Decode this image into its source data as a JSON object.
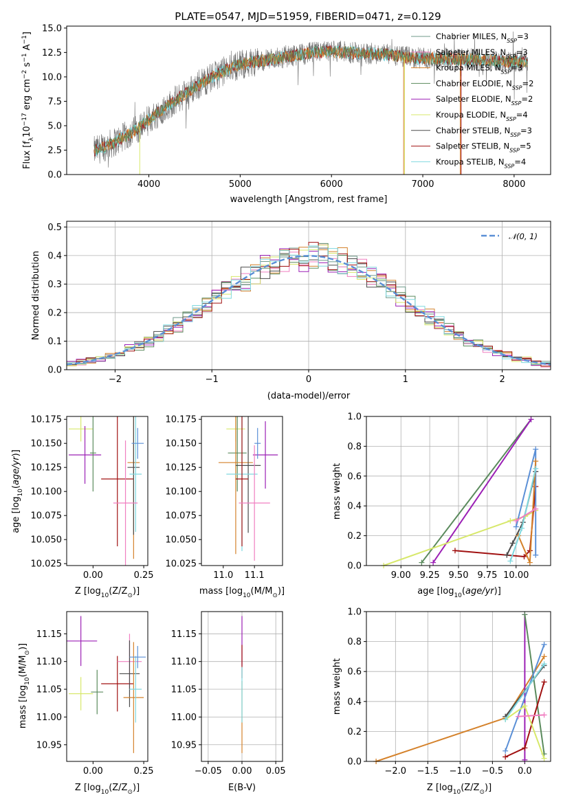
{
  "figure_title": "PLATE=0547, MJD=51959, FIBERID=0471, z=0.129",
  "colors": {
    "Chabrier MILES": "#6f9a8a",
    "Salpeter MILES": "#f07ec0",
    "Kroupa MILES": "#d4812a",
    "Chabrier ELODIE": "#5a8a5c",
    "Salpeter ELODIE": "#9b1fb5",
    "Kroupa ELODIE": "#d7e86a",
    "Chabrier STELIB": "#4a4a4a",
    "Salpeter STELIB": "#a01010",
    "Kroupa STELIB": "#7fd8df",
    "gauss": "#5a8fd6",
    "blue_series": "#5a8fd6",
    "orange_series": "#e07b20",
    "green_series": "#5a8a5c",
    "purple_series": "#9b1fb5",
    "yellow_series": "#cfe85a",
    "red_series": "#a01010",
    "dark_series": "#4a4a4a",
    "pink_series": "#f07ec0",
    "cyan_series": "#7fd8df"
  },
  "chart_data": [
    {
      "id": "spectrum",
      "type": "line",
      "title": "PLATE=0547, MJD=51959, FIBERID=0471, z=0.129",
      "xlabel": "wavelength [Angstrom, rest frame]",
      "ylabel": "Flux [fλ10⁻¹⁷ erg cm⁻² s⁻¹ A⁻¹]",
      "xlim": [
        3100,
        8400
      ],
      "ylim": [
        0,
        15.2
      ],
      "xticks": [
        "4000",
        "5000",
        "6000",
        "7000",
        "8000"
      ],
      "yticks": [
        "0.0",
        "2.5",
        "5.0",
        "7.5",
        "10.0",
        "12.5",
        "15.0"
      ],
      "legend_position": "right",
      "continuum_knots": [
        [
          3400,
          2.4
        ],
        [
          3600,
          3.2
        ],
        [
          3800,
          4.2
        ],
        [
          4000,
          5.6
        ],
        [
          4200,
          7.0
        ],
        [
          4400,
          8.3
        ],
        [
          4600,
          9.5
        ],
        [
          4800,
          10.5
        ],
        [
          5000,
          11.3
        ],
        [
          5200,
          11.6
        ],
        [
          5400,
          11.9
        ],
        [
          5600,
          12.2
        ],
        [
          5800,
          12.5
        ],
        [
          6000,
          12.6
        ],
        [
          6200,
          12.5
        ],
        [
          6400,
          12.4
        ],
        [
          6600,
          12.3
        ],
        [
          6800,
          12.0
        ],
        [
          7000,
          11.9
        ],
        [
          7200,
          11.9
        ],
        [
          7400,
          11.8
        ],
        [
          7600,
          11.8
        ],
        [
          7800,
          11.6
        ],
        [
          8000,
          11.6
        ],
        [
          8150,
          11.5
        ]
      ],
      "series": [
        {
          "name": "Chabrier MILES, N_SSP=3"
        },
        {
          "name": "Salpeter MILES, N_SSP=3"
        },
        {
          "name": "Kroupa MILES, N_SSP=3"
        },
        {
          "name": "Chabrier ELODIE, N_SSP=2"
        },
        {
          "name": "Salpeter ELODIE, N_SSP=2"
        },
        {
          "name": "Kroupa ELODIE, N_SSP=4"
        },
        {
          "name": "Chabrier STELIB, N_SSP=3"
        },
        {
          "name": "Salpeter STELIB, N_SSP=5"
        },
        {
          "name": "Kroupa STELIB, N_SSP=4"
        }
      ],
      "legend_labels": [
        {
          "pre": "Chabrier MILES, N",
          "sub": "SSP",
          "post": "=3"
        },
        {
          "pre": "Salpeter MILES, N",
          "sub": "SSP",
          "post": "=3"
        },
        {
          "pre": "Kroupa MILES, N",
          "sub": "SSP",
          "post": "=3"
        },
        {
          "pre": "Chabrier ELODIE, N",
          "sub": "SSP",
          "post": "=2"
        },
        {
          "pre": "Salpeter ELODIE, N",
          "sub": "SSP",
          "post": "=2"
        },
        {
          "pre": "Kroupa ELODIE, N",
          "sub": "SSP",
          "post": "=4"
        },
        {
          "pre": "Chabrier STELIB, N",
          "sub": "SSP",
          "post": "=3"
        },
        {
          "pre": "Salpeter STELIB, N",
          "sub": "SSP",
          "post": "=5"
        },
        {
          "pre": "Kroupa STELIB, N",
          "sub": "SSP",
          "post": "=4"
        }
      ],
      "vertical_drops": [
        {
          "x": 6790,
          "series": "Kroupa MILES"
        },
        {
          "x": 7410,
          "series": "Kroupa MILES"
        },
        {
          "x": 6800,
          "series": "Kroupa ELODIE"
        },
        {
          "x": 7420,
          "series": "Salpeter STELIB"
        },
        {
          "x": 3900,
          "series": "Kroupa ELODIE"
        }
      ]
    },
    {
      "id": "residuals",
      "type": "line",
      "xlabel": "(data-model)/error",
      "ylabel": "Normed distribution",
      "xlim": [
        -2.5,
        2.5
      ],
      "ylim": [
        0,
        0.52
      ],
      "xticks": [
        -2,
        -1,
        0,
        1,
        2
      ],
      "yticks": [
        "0.0",
        "0.1",
        "0.2",
        "0.3",
        "0.4",
        "0.5"
      ],
      "gauss_label": "𝒩(0, 1)",
      "bin_width": 0.1,
      "grid": true
    },
    {
      "id": "age_vs_Z",
      "type": "scatter",
      "xlabel_parts": {
        "pre": "Z [log",
        "sub": "10",
        "post": "(Z/Z",
        "sub2": "⊙",
        "end": ")]"
      },
      "ylabel": "age  [log10(age/yr)]",
      "xlim": [
        -0.13,
        0.27
      ],
      "ylim": [
        10.023,
        10.178
      ],
      "xticks": [
        "0.00",
        "0.25"
      ],
      "yticks": [
        "10.025",
        "10.050",
        "10.075",
        "10.100",
        "10.125",
        "10.150",
        "10.175"
      ],
      "points": [
        {
          "series": "Kroupa ELODIE",
          "x": -0.06,
          "xerr": 0.06,
          "y": 10.165,
          "yerr": 0.013
        },
        {
          "series": "Salpeter ELODIE",
          "x": -0.04,
          "xerr": 0.08,
          "y": 10.138,
          "yerr": 0.03
        },
        {
          "series": "Chabrier ELODIE",
          "x": 0.0,
          "xerr": 0.015,
          "y": 10.14,
          "yerr": 0.04
        },
        {
          "series": "Salpeter STELIB",
          "x": 0.12,
          "xerr": 0.08,
          "y": 10.113,
          "yerr": 0.07
        },
        {
          "series": "Kroupa MILES",
          "x": 0.2,
          "xerr": 0.03,
          "y": 10.13,
          "yerr": 0.1
        },
        {
          "series": "Chabrier STELIB",
          "x": 0.2,
          "xerr": 0.03,
          "y": 10.125,
          "yerr": 0.07
        },
        {
          "series": "Kroupa STELIB",
          "x": 0.21,
          "xerr": 0.03,
          "y": 10.118,
          "yerr": 0.06
        },
        {
          "series": "Salpeter MILES",
          "x": 0.16,
          "xerr": 0.06,
          "y": 10.088,
          "yerr": 0.065
        },
        {
          "series": "Blue",
          "x": 0.22,
          "xerr": 0.03,
          "y": 10.15,
          "yerr": 0.016
        }
      ]
    },
    {
      "id": "age_vs_mass",
      "type": "scatter",
      "xlabel_parts": {
        "pre": "mass [log",
        "sub": "10",
        "post": "(M/M",
        "sub2": "⊙",
        "end": ")]"
      },
      "xlim": [
        10.93,
        11.19
      ],
      "ylim": [
        10.023,
        10.178
      ],
      "xticks": [
        "11.0",
        "11.1"
      ],
      "yticks": [
        "10.025",
        "10.050",
        "10.075",
        "10.100",
        "10.125",
        "10.150",
        "10.175"
      ],
      "points": [
        {
          "series": "Kroupa ELODIE",
          "x": 11.04,
          "xerr": 0.03,
          "y": 10.165,
          "yerr": 0.013
        },
        {
          "series": "Salpeter ELODIE",
          "x": 11.135,
          "xerr": 0.04,
          "y": 10.138,
          "yerr": 0.035
        },
        {
          "series": "Chabrier ELODIE",
          "x": 11.045,
          "xerr": 0.03,
          "y": 10.14,
          "yerr": 0.04
        },
        {
          "series": "Blue",
          "x": 11.11,
          "xerr": 0.01,
          "y": 10.15,
          "yerr": 0.016
        },
        {
          "series": "Kroupa MILES",
          "x": 11.04,
          "xerr": 0.055,
          "y": 10.13,
          "yerr": 0.095
        },
        {
          "series": "Chabrier STELIB",
          "x": 11.08,
          "xerr": 0.04,
          "y": 10.127,
          "yerr": 0.07
        },
        {
          "series": "Kroupa STELIB",
          "x": 11.06,
          "xerr": 0.05,
          "y": 10.118,
          "yerr": 0.08
        },
        {
          "series": "Salpeter STELIB",
          "x": 11.06,
          "xerr": 0.02,
          "y": 10.113,
          "yerr": 0.07
        },
        {
          "series": "Salpeter MILES",
          "x": 11.1,
          "xerr": 0.05,
          "y": 10.088,
          "yerr": 0.06
        }
      ]
    },
    {
      "id": "weight_vs_age",
      "type": "line",
      "xlabel_parts": {
        "pre": "age  [log",
        "sub": "10",
        "post": "(age/yr)]"
      },
      "ylabel": "mass weight",
      "xlim": [
        8.7,
        10.3
      ],
      "ylim": [
        0,
        1.0
      ],
      "xticks": [
        "9.00",
        "9.25",
        "9.50",
        "9.75",
        "10.00"
      ],
      "yticks": [
        "0.0",
        "0.2",
        "0.4",
        "0.6",
        "0.8",
        "1.0"
      ],
      "grid": true,
      "series": [
        {
          "series": "Chabrier ELODIE",
          "points": [
            [
              9.18,
              0.02
            ],
            [
              10.13,
              0.98
            ]
          ]
        },
        {
          "series": "Salpeter ELODIE",
          "points": [
            [
              9.28,
              0.02
            ],
            [
              10.13,
              0.98
            ]
          ]
        },
        {
          "series": "Kroupa ELODIE",
          "points": [
            [
              8.85,
              0.0
            ],
            [
              9.95,
              0.3
            ],
            [
              10.08,
              0.33
            ],
            [
              10.17,
              0.37
            ]
          ]
        },
        {
          "series": "Salpeter STELIB",
          "points": [
            [
              9.47,
              0.1
            ],
            [
              10.07,
              0.06
            ],
            [
              10.12,
              0.1
            ],
            [
              10.17,
              0.53
            ]
          ]
        },
        {
          "series": "Chabrier STELIB",
          "points": [
            [
              9.92,
              0.07
            ],
            [
              9.97,
              0.15
            ],
            [
              10.06,
              0.29
            ],
            [
              10.17,
              0.63
            ]
          ]
        },
        {
          "series": "Blue",
          "points": [
            [
              10.0,
              0.26
            ],
            [
              10.17,
              0.78
            ],
            [
              10.17,
              0.07
            ]
          ]
        },
        {
          "series": "Kroupa MILES",
          "points": [
            [
              10.02,
              0.2
            ],
            [
              10.12,
              0.02
            ],
            [
              10.17,
              0.7
            ]
          ]
        },
        {
          "series": "Kroupa STELIB",
          "points": [
            [
              9.95,
              0.03
            ],
            [
              10.05,
              0.25
            ],
            [
              10.17,
              0.65
            ]
          ]
        },
        {
          "series": "Salpeter MILES",
          "points": [
            [
              10.0,
              0.3
            ],
            [
              10.17,
              0.38
            ]
          ]
        }
      ]
    },
    {
      "id": "mass_vs_Z",
      "type": "scatter",
      "xlabel_parts": {
        "pre": "Z [log",
        "sub": "10",
        "post": "(Z/Z",
        "sub2": "⊙",
        "end": ")]"
      },
      "ylabel_parts": {
        "pre": "mass [log",
        "sub": "10",
        "post": "(M/M",
        "sub2": "⊙",
        "end": ")]"
      },
      "xlim": [
        -0.13,
        0.27
      ],
      "ylim": [
        10.92,
        11.19
      ],
      "xticks": [
        "0.00",
        "0.25"
      ],
      "yticks": [
        "10.95",
        "11.00",
        "11.05",
        "11.10",
        "11.15"
      ],
      "points": [
        {
          "series": "Salpeter ELODIE",
          "x": -0.06,
          "xerr": 0.08,
          "y": 11.137,
          "yerr": 0.045
        },
        {
          "series": "Kroupa ELODIE",
          "x": -0.06,
          "xerr": 0.06,
          "y": 11.042,
          "yerr": 0.03
        },
        {
          "series": "Chabrier ELODIE",
          "x": 0.02,
          "xerr": 0.03,
          "y": 11.045,
          "yerr": 0.04
        },
        {
          "series": "Salpeter STELIB",
          "x": 0.12,
          "xerr": 0.08,
          "y": 11.06,
          "yerr": 0.05
        },
        {
          "series": "Salpeter MILES",
          "x": 0.18,
          "xerr": 0.06,
          "y": 11.1,
          "yerr": 0.05
        },
        {
          "series": "Chabrier STELIB",
          "x": 0.18,
          "xerr": 0.05,
          "y": 11.078,
          "yerr": 0.06
        },
        {
          "series": "Kroupa MILES",
          "x": 0.2,
          "xerr": 0.05,
          "y": 11.035,
          "yerr": 0.1
        },
        {
          "series": "Kroupa STELIB",
          "x": 0.21,
          "xerr": 0.03,
          "y": 11.05,
          "yerr": 0.06
        },
        {
          "series": "Blue",
          "x": 0.22,
          "xerr": 0.04,
          "y": 11.108,
          "yerr": 0.02
        }
      ]
    },
    {
      "id": "mass_vs_ebv",
      "type": "scatter",
      "xlabel": "E(B-V)",
      "xlim": [
        -0.06,
        0.06
      ],
      "ylim": [
        10.92,
        11.19
      ],
      "xticks": [
        "−0.05",
        "0.00",
        "0.05"
      ],
      "yticks": [
        "10.95",
        "11.00",
        "11.05",
        "11.10",
        "11.15"
      ],
      "points": [
        {
          "series": "Salpeter ELODIE",
          "x": 0.0,
          "y": 11.137,
          "yerr": 0.045
        },
        {
          "series": "Salpeter STELIB",
          "x": 0.0,
          "y": 11.1,
          "yerr": 0.03
        },
        {
          "series": "Kroupa MILES",
          "x": 0.0,
          "y": 11.0,
          "yerr": 0.065
        },
        {
          "series": "Kroupa STELIB",
          "x": 0.0,
          "y": 11.04,
          "yerr": 0.05
        }
      ]
    },
    {
      "id": "weight_vs_Z",
      "type": "line",
      "xlabel_parts": {
        "pre": "Z [log",
        "sub": "10",
        "post": "(Z/Z",
        "sub2": "⊙",
        "end": ")]"
      },
      "ylabel": "mass weight",
      "xlim": [
        -2.45,
        0.4
      ],
      "ylim": [
        0,
        1.0
      ],
      "xticks": [
        "−2.0",
        "−1.5",
        "−1.0",
        "−0.5",
        "0.0"
      ],
      "yticks": [
        "0.0",
        "0.2",
        "0.4",
        "0.6",
        "0.8",
        "1.0"
      ],
      "grid": true,
      "series": [
        {
          "series": "Kroupa MILES",
          "points": [
            [
              -2.3,
              0.0
            ],
            [
              -0.3,
              0.29
            ],
            [
              0.3,
              0.7
            ]
          ]
        },
        {
          "series": "Salpeter ELODIE",
          "points": [
            [
              0.0,
              0.98
            ],
            [
              0.0,
              0.01
            ]
          ]
        },
        {
          "series": "Chabrier ELODIE",
          "points": [
            [
              0.0,
              0.98
            ],
            [
              0.3,
              0.05
            ]
          ]
        },
        {
          "series": "Blue",
          "points": [
            [
              -0.3,
              0.07
            ],
            [
              0.3,
              0.78
            ]
          ]
        },
        {
          "series": "Salpeter STELIB",
          "points": [
            [
              -0.3,
              0.03
            ],
            [
              0.0,
              0.09
            ],
            [
              0.3,
              0.53
            ]
          ]
        },
        {
          "series": "Kroupa ELODIE",
          "points": [
            [
              -0.3,
              0.28
            ],
            [
              0.0,
              0.37
            ],
            [
              0.3,
              0.02
            ]
          ]
        },
        {
          "series": "Chabrier STELIB",
          "points": [
            [
              -0.3,
              0.3
            ],
            [
              0.3,
              0.64
            ]
          ]
        },
        {
          "series": "Kroupa STELIB",
          "points": [
            [
              -0.3,
              0.28
            ],
            [
              0.3,
              0.65
            ]
          ]
        },
        {
          "series": "Salpeter MILES",
          "points": [
            [
              -0.1,
              0.3
            ],
            [
              0.3,
              0.31
            ]
          ]
        }
      ]
    }
  ]
}
